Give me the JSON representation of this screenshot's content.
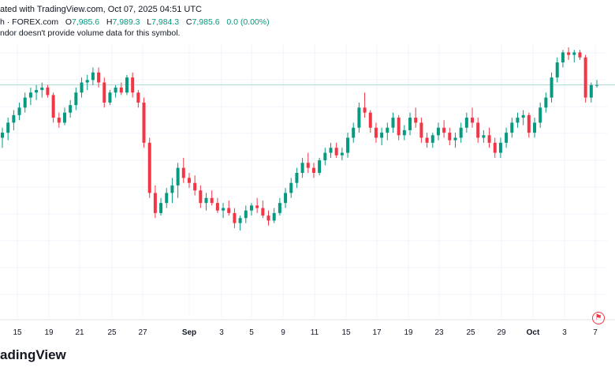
{
  "header": {
    "published_text": "ated with TradingView.com, Oct 07, 2025 04:51 UTC"
  },
  "legend": {
    "symbol_text": "h · FOREX.com",
    "o_label": "O",
    "o_value": "7,985.6",
    "h_label": "H",
    "h_value": "7,989.3",
    "l_label": "L",
    "l_value": "7,984.3",
    "c_label": "C",
    "c_value": "7,985.6",
    "change": "0.0 (0.00%)",
    "volume_note": "ndor doesn't provide volume data for this symbol."
  },
  "brand": {
    "text": "adingView"
  },
  "colors": {
    "up": "#089981",
    "down": "#f23645",
    "grid": "#f0f3fa",
    "price_line": "#089981"
  },
  "chart_data": {
    "type": "candlestick",
    "x_ticks": [
      "15",
      "19",
      "21",
      "25",
      "27",
      "Sep",
      "3",
      "5",
      "9",
      "11",
      "15",
      "17",
      "19",
      "23",
      "25",
      "29",
      "Oct",
      "3",
      "7"
    ],
    "y_range_relative": [
      0,
      100
    ],
    "candles_relative_ohlc": [
      [
        64,
        68,
        60,
        66
      ],
      [
        66,
        72,
        63,
        70
      ],
      [
        70,
        75,
        67,
        73
      ],
      [
        73,
        78,
        71,
        76
      ],
      [
        76,
        82,
        74,
        80
      ],
      [
        80,
        84,
        77,
        82
      ],
      [
        82,
        85,
        79,
        83
      ],
      [
        83,
        86,
        80,
        84
      ],
      [
        84,
        85,
        80,
        81
      ],
      [
        81,
        82,
        70,
        72
      ],
      [
        72,
        74,
        68,
        70
      ],
      [
        70,
        76,
        69,
        74
      ],
      [
        74,
        79,
        72,
        77
      ],
      [
        77,
        84,
        75,
        82
      ],
      [
        82,
        88,
        80,
        86
      ],
      [
        86,
        89,
        83,
        87
      ],
      [
        87,
        92,
        85,
        90
      ],
      [
        90,
        92,
        84,
        86
      ],
      [
        86,
        88,
        76,
        78
      ],
      [
        78,
        83,
        77,
        82
      ],
      [
        82,
        85,
        80,
        84
      ],
      [
        84,
        86,
        81,
        82
      ],
      [
        82,
        89,
        81,
        88
      ],
      [
        88,
        90,
        80,
        82
      ],
      [
        82,
        83,
        76,
        78
      ],
      [
        78,
        80,
        60,
        62
      ],
      [
        62,
        64,
        40,
        42
      ],
      [
        42,
        45,
        32,
        34
      ],
      [
        34,
        40,
        33,
        38
      ],
      [
        38,
        44,
        36,
        42
      ],
      [
        42,
        48,
        38,
        45
      ],
      [
        45,
        54,
        40,
        52
      ],
      [
        52,
        56,
        46,
        48
      ],
      [
        48,
        50,
        44,
        46
      ],
      [
        46,
        49,
        41,
        43
      ],
      [
        43,
        45,
        36,
        38
      ],
      [
        38,
        42,
        35,
        40
      ],
      [
        40,
        43,
        37,
        38
      ],
      [
        38,
        40,
        34,
        35
      ],
      [
        35,
        38,
        32,
        36
      ],
      [
        36,
        39,
        33,
        34
      ],
      [
        34,
        36,
        28,
        30
      ],
      [
        30,
        33,
        27,
        32
      ],
      [
        32,
        37,
        30,
        35
      ],
      [
        35,
        38,
        33,
        37
      ],
      [
        37,
        40,
        34,
        36
      ],
      [
        36,
        39,
        32,
        33
      ],
      [
        33,
        35,
        29,
        31
      ],
      [
        31,
        36,
        30,
        34
      ],
      [
        34,
        40,
        33,
        38
      ],
      [
        38,
        44,
        36,
        42
      ],
      [
        42,
        48,
        40,
        46
      ],
      [
        46,
        52,
        44,
        50
      ],
      [
        50,
        56,
        48,
        54
      ],
      [
        54,
        58,
        50,
        52
      ],
      [
        52,
        54,
        48,
        50
      ],
      [
        50,
        56,
        49,
        55
      ],
      [
        55,
        60,
        53,
        58
      ],
      [
        58,
        62,
        56,
        60
      ],
      [
        60,
        62,
        56,
        57
      ],
      [
        57,
        60,
        55,
        58
      ],
      [
        58,
        66,
        56,
        64
      ],
      [
        64,
        70,
        62,
        68
      ],
      [
        68,
        78,
        66,
        76
      ],
      [
        76,
        82,
        72,
        74
      ],
      [
        74,
        75,
        66,
        68
      ],
      [
        68,
        70,
        62,
        64
      ],
      [
        64,
        68,
        61,
        66
      ],
      [
        66,
        70,
        63,
        68
      ],
      [
        68,
        74,
        66,
        72
      ],
      [
        72,
        73,
        63,
        65
      ],
      [
        65,
        69,
        63,
        67
      ],
      [
        67,
        74,
        65,
        72
      ],
      [
        72,
        76,
        68,
        70
      ],
      [
        70,
        72,
        62,
        64
      ],
      [
        64,
        66,
        60,
        62
      ],
      [
        62,
        66,
        60,
        65
      ],
      [
        65,
        70,
        63,
        68
      ],
      [
        68,
        71,
        64,
        66
      ],
      [
        66,
        68,
        61,
        63
      ],
      [
        63,
        66,
        60,
        64
      ],
      [
        64,
        70,
        62,
        68
      ],
      [
        68,
        74,
        66,
        72
      ],
      [
        72,
        76,
        68,
        70
      ],
      [
        70,
        72,
        62,
        64
      ],
      [
        64,
        67,
        62,
        65
      ],
      [
        65,
        68,
        60,
        62
      ],
      [
        62,
        64,
        56,
        58
      ],
      [
        58,
        64,
        56,
        62
      ],
      [
        62,
        68,
        60,
        66
      ],
      [
        66,
        72,
        64,
        70
      ],
      [
        70,
        74,
        68,
        72
      ],
      [
        72,
        75,
        69,
        73
      ],
      [
        73,
        74,
        64,
        66
      ],
      [
        66,
        72,
        64,
        70
      ],
      [
        70,
        78,
        68,
        76
      ],
      [
        76,
        82,
        74,
        80
      ],
      [
        80,
        90,
        78,
        88
      ],
      [
        88,
        96,
        86,
        94
      ],
      [
        94,
        99,
        92,
        98
      ],
      [
        98,
        100,
        95,
        97
      ],
      [
        97,
        99,
        94,
        98
      ],
      [
        98,
        99,
        95,
        96
      ],
      [
        96,
        97,
        78,
        80
      ],
      [
        80,
        86,
        78,
        85
      ],
      [
        85,
        87,
        84,
        85
      ]
    ]
  }
}
